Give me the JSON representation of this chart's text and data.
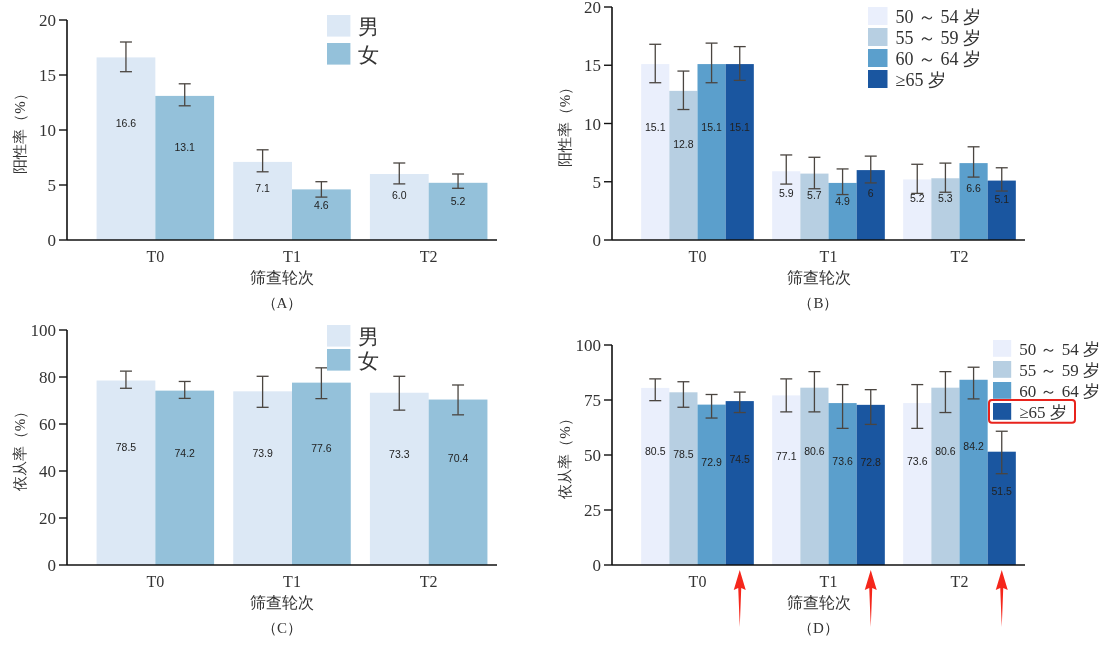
{
  "chart_data": [
    {
      "type": "bar",
      "xlabel": "筛查轮次",
      "ylabel": "阳性率（%）",
      "categories": [
        "T0",
        "T1",
        "T2"
      ],
      "ylim": [
        0,
        20
      ],
      "yticks": [
        0,
        5,
        10,
        15,
        20
      ],
      "legend": "top right",
      "annotations": [
        "（A）"
      ],
      "series": [
        {
          "name": "男",
          "color": "#dce8f5",
          "values": [
            16.6,
            7.1,
            6.0
          ],
          "errors": [
            [
              15.3,
              18.0
            ],
            [
              6.2,
              8.2
            ],
            [
              5.1,
              7.0
            ]
          ],
          "value_labels": [
            "16.6",
            "7.1",
            "6.0"
          ]
        },
        {
          "name": "女",
          "color": "#94c1da",
          "values": [
            13.1,
            4.6,
            5.2
          ],
          "errors": [
            [
              12.2,
              14.2
            ],
            [
              3.9,
              5.3
            ],
            [
              4.7,
              6.0
            ]
          ],
          "value_labels": [
            "13.1",
            "4.6",
            "5.2"
          ]
        }
      ]
    },
    {
      "type": "bar",
      "xlabel": "筛查轮次",
      "ylabel": "阳性率（%）",
      "categories": [
        "T0",
        "T1",
        "T2"
      ],
      "ylim": [
        0,
        20
      ],
      "yticks": [
        0,
        5,
        10,
        15,
        20
      ],
      "legend": "top right",
      "annotations": [
        "（B）"
      ],
      "series": [
        {
          "name": "50 ～ 54 岁",
          "color": "#eaeffc",
          "values": [
            15.1,
            5.9,
            5.2
          ],
          "errors": [
            [
              13.5,
              16.8
            ],
            [
              4.8,
              7.3
            ],
            [
              4.0,
              6.5
            ]
          ],
          "value_labels": [
            "15.1",
            "5.9",
            "5.2"
          ]
        },
        {
          "name": "55 ～ 59 岁",
          "color": "#b7cfe2",
          "values": [
            12.8,
            5.7,
            5.3
          ],
          "errors": [
            [
              11.2,
              14.5
            ],
            [
              4.4,
              7.1
            ],
            [
              4.1,
              6.6
            ]
          ],
          "value_labels": [
            "12.8",
            "5.7",
            "5.3"
          ]
        },
        {
          "name": "60 ～ 64 岁",
          "color": "#5b9fcc",
          "values": [
            15.1,
            4.9,
            6.6
          ],
          "errors": [
            [
              13.5,
              16.9
            ],
            [
              3.9,
              6.1
            ],
            [
              5.4,
              8.0
            ]
          ],
          "value_labels": [
            "15.1",
            "4.9",
            "6.6"
          ]
        },
        {
          "name": "≥65 岁",
          "color": "#1a56a0",
          "values": [
            15.1,
            6,
            5.1
          ],
          "errors": [
            [
              13.7,
              16.6
            ],
            [
              4.9,
              7.2
            ],
            [
              4.2,
              6.2
            ]
          ],
          "value_labels": [
            "15.1",
            "6",
            "5.1"
          ]
        }
      ]
    },
    {
      "type": "bar",
      "xlabel": "筛查轮次",
      "ylabel": "依从率（%）",
      "categories": [
        "T0",
        "T1",
        "T2"
      ],
      "ylim": [
        0,
        100
      ],
      "yticks": [
        0,
        20,
        40,
        60,
        80,
        100
      ],
      "legend": "top right",
      "annotations": [
        "（C）"
      ],
      "series": [
        {
          "name": "男",
          "color": "#dce8f5",
          "values": [
            78.5,
            73.9,
            73.3
          ],
          "errors": [
            [
              75.2,
              82.5
            ],
            [
              67.1,
              80.3
            ],
            [
              65.9,
              80.3
            ]
          ],
          "value_labels": [
            "78.5",
            "73.9",
            "73.3"
          ]
        },
        {
          "name": "女",
          "color": "#94c1da",
          "values": [
            74.2,
            77.6,
            70.4
          ],
          "errors": [
            [
              70.9,
              78.1
            ],
            [
              70.8,
              83.9
            ],
            [
              63.9,
              76.6
            ]
          ],
          "value_labels": [
            "74.2",
            "77.6",
            "70.4"
          ]
        }
      ]
    },
    {
      "type": "bar",
      "xlabel": "筛查轮次",
      "ylabel": "依从率（%）",
      "categories": [
        "T0",
        "T1",
        "T2"
      ],
      "ylim": [
        0,
        100
      ],
      "yticks": [
        0,
        25,
        50,
        75,
        100
      ],
      "legend": "top right",
      "annotations": [
        "（D）"
      ],
      "series": [
        {
          "name": "50 ～ 54 岁",
          "color": "#eaeffc",
          "values": [
            80.5,
            77.1,
            73.6
          ],
          "errors": [
            [
              74.7,
              84.6
            ],
            [
              69.6,
              84.6
            ],
            [
              62.1,
              82.0
            ]
          ],
          "value_labels": [
            "80.5",
            "77.1",
            "73.6"
          ]
        },
        {
          "name": "55 ～ 59 岁",
          "color": "#b7cfe2",
          "values": [
            78.5,
            80.6,
            80.6
          ],
          "errors": [
            [
              71.7,
              83.3
            ],
            [
              69.6,
              87.9
            ],
            [
              69.3,
              87.9
            ]
          ],
          "value_labels": [
            "78.5",
            "80.6",
            "80.6"
          ]
        },
        {
          "name": "60 ～ 64 岁",
          "color": "#5b9fcc",
          "values": [
            72.9,
            73.6,
            84.2
          ],
          "errors": [
            [
              66.8,
              77.5
            ],
            [
              62.1,
              82.0
            ],
            [
              75.5,
              89.9
            ]
          ],
          "value_labels": [
            "72.9",
            "73.6",
            "84.2"
          ]
        },
        {
          "name": "≥65 岁",
          "color": "#1a56a0",
          "values": [
            74.5,
            72.8,
            51.5
          ],
          "errors": [
            [
              69.3,
              78.6
            ],
            [
              63.9,
              79.7
            ],
            [
              41.5,
              60.8
            ]
          ],
          "value_labels": [
            "74.5",
            "72.8",
            "51.5"
          ]
        }
      ]
    }
  ]
}
